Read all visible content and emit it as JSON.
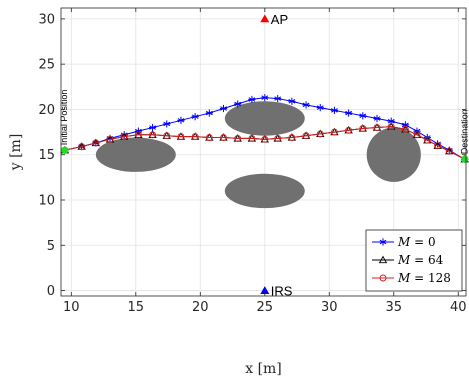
{
  "chart_data": {
    "type": "line",
    "title": "",
    "xlabel": "x [m]",
    "ylabel": "y [m]",
    "xlim": [
      9.2,
      40.6
    ],
    "ylim": [
      -0.6,
      31.2
    ],
    "xticks": [
      10,
      15,
      20,
      25,
      30,
      35,
      40
    ],
    "yticks": [
      0,
      5,
      10,
      15,
      20,
      25,
      30
    ],
    "grid": true,
    "legend_position": "bottom-right",
    "series": [
      {
        "name": "M = 0",
        "name_var": "M",
        "name_val": "= 0",
        "color": "#0000ff",
        "marker": "asterisk",
        "x": [
          9.5,
          10.8,
          11.9,
          13.0,
          14.1,
          15.2,
          16.3,
          17.4,
          18.5,
          19.6,
          20.7,
          21.8,
          22.9,
          24.0,
          25.0,
          26.0,
          27.1,
          28.2,
          29.3,
          30.4,
          31.5,
          32.6,
          33.7,
          34.8,
          35.9,
          36.8,
          37.6,
          38.4,
          39.3,
          40.5
        ],
        "y": [
          15.5,
          15.9,
          16.3,
          16.8,
          17.2,
          17.6,
          18.0,
          18.4,
          18.8,
          19.2,
          19.6,
          20.1,
          20.6,
          21.1,
          21.3,
          21.2,
          20.9,
          20.5,
          20.2,
          19.9,
          19.6,
          19.3,
          19.0,
          18.7,
          18.3,
          17.6,
          16.9,
          16.2,
          15.5,
          14.5
        ]
      },
      {
        "name": "M = 64",
        "name_var": "M",
        "name_val": "= 64",
        "color": "#000000",
        "marker": "triangle",
        "x": [
          9.5,
          10.8,
          11.9,
          13.0,
          14.1,
          15.2,
          16.3,
          17.4,
          18.5,
          19.6,
          20.7,
          21.8,
          22.9,
          24.0,
          25.0,
          26.0,
          27.1,
          28.2,
          29.3,
          30.4,
          31.5,
          32.6,
          33.7,
          34.8,
          35.9,
          36.8,
          37.6,
          38.4,
          39.3,
          40.5
        ],
        "y": [
          15.5,
          15.9,
          16.3,
          16.7,
          17.0,
          17.2,
          17.2,
          17.1,
          17.0,
          17.0,
          16.9,
          16.9,
          16.8,
          16.8,
          16.7,
          16.8,
          16.9,
          17.1,
          17.3,
          17.5,
          17.7,
          17.9,
          18.0,
          18.1,
          17.8,
          17.2,
          16.6,
          16.0,
          15.4,
          14.5
        ]
      },
      {
        "name": "M = 128",
        "name_var": "M",
        "name_val": "= 128",
        "color": "#d42020",
        "marker": "circle",
        "x": [
          9.5,
          10.8,
          11.9,
          13.0,
          14.1,
          15.2,
          16.3,
          17.4,
          18.5,
          19.6,
          20.7,
          21.8,
          22.9,
          24.0,
          25.0,
          26.0,
          27.1,
          28.2,
          29.3,
          30.4,
          31.5,
          32.6,
          33.7,
          34.8,
          35.9,
          36.8,
          37.6,
          38.4,
          39.3,
          40.5
        ],
        "y": [
          15.5,
          15.9,
          16.3,
          16.7,
          17.0,
          17.2,
          17.2,
          17.1,
          17.0,
          17.0,
          16.9,
          16.9,
          16.8,
          16.8,
          16.7,
          16.8,
          16.9,
          17.1,
          17.3,
          17.5,
          17.7,
          17.9,
          18.0,
          18.1,
          17.8,
          17.2,
          16.6,
          16.0,
          15.4,
          14.5
        ]
      }
    ],
    "obstacles": [
      {
        "cx": 15,
        "cy": 15,
        "rx": 3.1,
        "ry": 1.9
      },
      {
        "cx": 25,
        "cy": 19,
        "rx": 3.1,
        "ry": 1.9
      },
      {
        "cx": 25,
        "cy": 11,
        "rx": 3.1,
        "ry": 1.9
      },
      {
        "cx": 35,
        "cy": 15,
        "rx": 2.1,
        "ry": 3.0
      }
    ],
    "obstacle_color": "#707070",
    "points": [
      {
        "label": "AP",
        "x": 25,
        "y": 30,
        "marker": "triangle",
        "color": "#ff0000"
      },
      {
        "label": "IRS",
        "x": 25,
        "y": 0,
        "marker": "triangle",
        "color": "#0000ff"
      },
      {
        "label": "Initial Position",
        "x": 9.5,
        "y": 15.5,
        "marker": "circle",
        "color": "#22dd22"
      },
      {
        "label": "Destination",
        "x": 40.5,
        "y": 14.5,
        "marker": "circle",
        "color": "#22dd22"
      }
    ]
  }
}
